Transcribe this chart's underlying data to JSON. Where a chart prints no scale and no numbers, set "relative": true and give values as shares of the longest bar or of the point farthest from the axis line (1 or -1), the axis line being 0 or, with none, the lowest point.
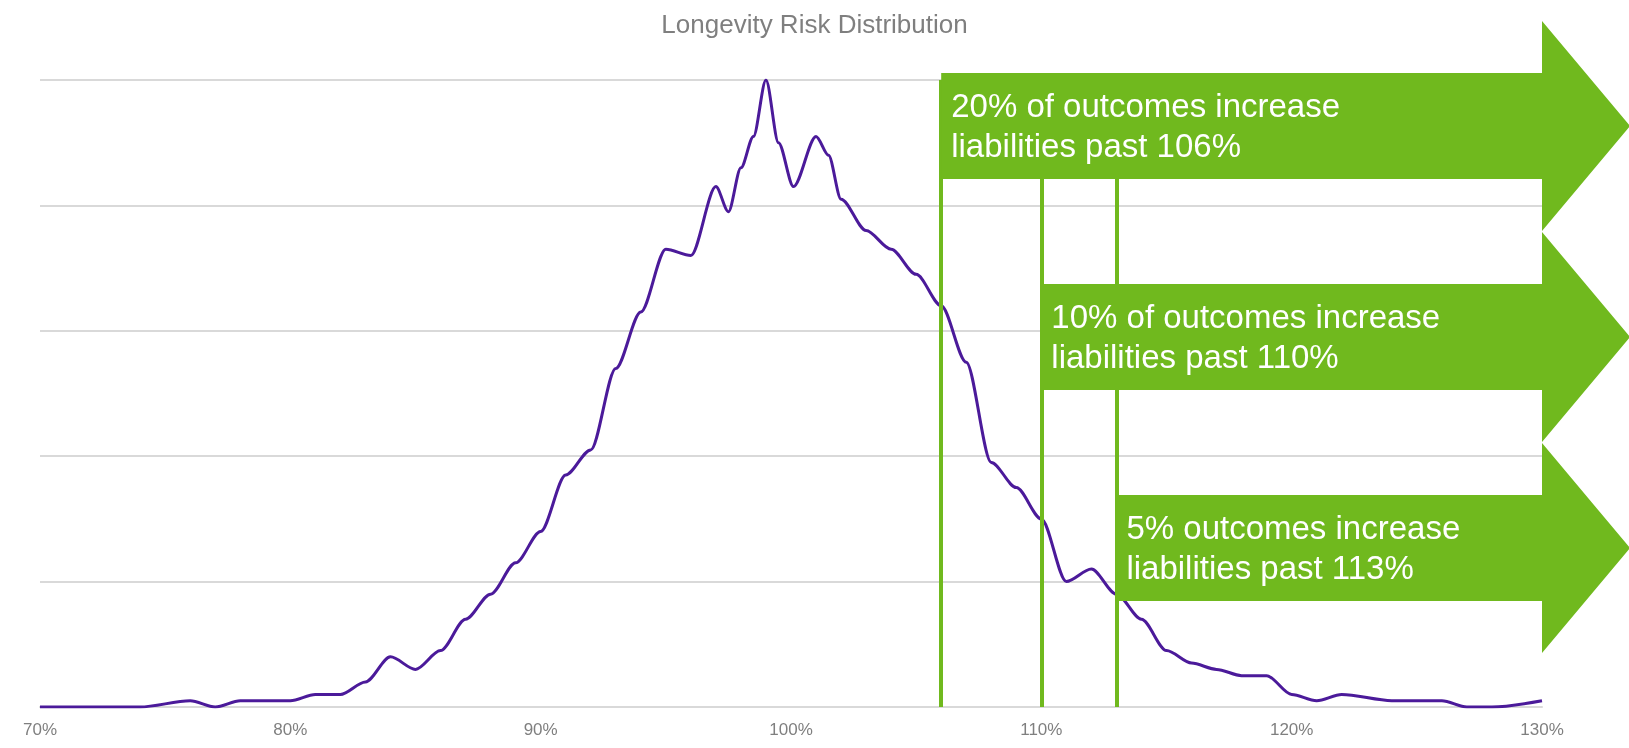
{
  "chart_data": {
    "type": "line",
    "title": "Longevity Risk Distribution",
    "relative": true,
    "grid": "y",
    "marker": "none",
    "xlim": [
      70,
      130
    ],
    "xticks": [
      {
        "value": 70,
        "label": "70%"
      },
      {
        "value": 80,
        "label": "80%"
      },
      {
        "value": 90,
        "label": "90%"
      },
      {
        "value": 100,
        "label": "100%"
      },
      {
        "value": 110,
        "label": "110%"
      },
      {
        "value": 120,
        "label": "120%"
      },
      {
        "value": 130,
        "label": "130%"
      }
    ],
    "series": [
      {
        "color": "#4b1a9a",
        "x": [
          70,
          72,
          74,
          76,
          77,
          78,
          79,
          80,
          81,
          82,
          83,
          84,
          85,
          86,
          87,
          88,
          89,
          90,
          91,
          92,
          93,
          94,
          95,
          96,
          97,
          97.5,
          98,
          98.5,
          99,
          99.5,
          100.1,
          101,
          101.5,
          102,
          103,
          104,
          105,
          106,
          107,
          108,
          109,
          110,
          111,
          112,
          113,
          114,
          115,
          116,
          117,
          118,
          119,
          120,
          121,
          122,
          124,
          126,
          127,
          128,
          130
        ],
        "values": [
          0,
          0,
          0,
          0.01,
          0,
          0.01,
          0.01,
          0.01,
          0.02,
          0.02,
          0.04,
          0.08,
          0.06,
          0.09,
          0.14,
          0.18,
          0.23,
          0.28,
          0.37,
          0.41,
          0.54,
          0.63,
          0.73,
          0.72,
          0.83,
          0.79,
          0.86,
          0.91,
          1,
          0.9,
          0.83,
          0.91,
          0.88,
          0.81,
          0.76,
          0.73,
          0.69,
          0.64,
          0.55,
          0.39,
          0.35,
          0.3,
          0.2,
          0.22,
          0.18,
          0.14,
          0.09,
          0.07,
          0.06,
          0.05,
          0.05,
          0.02,
          0.01,
          0.02,
          0.01,
          0.01,
          0,
          0,
          0.01
        ]
      }
    ],
    "ref_lines": [
      {
        "axis": "x",
        "value": 106,
        "label": "20% of outcomes increase liabilities past 106%",
        "color": "#70b91e"
      },
      {
        "axis": "x",
        "value": 110,
        "label": "10% of outcomes increase liabilities past 110%",
        "color": "#70b91e"
      },
      {
        "axis": "x",
        "value": 113,
        "label": "5% outcomes increase liabilities past 113%",
        "color": "#70b91e"
      }
    ]
  }
}
